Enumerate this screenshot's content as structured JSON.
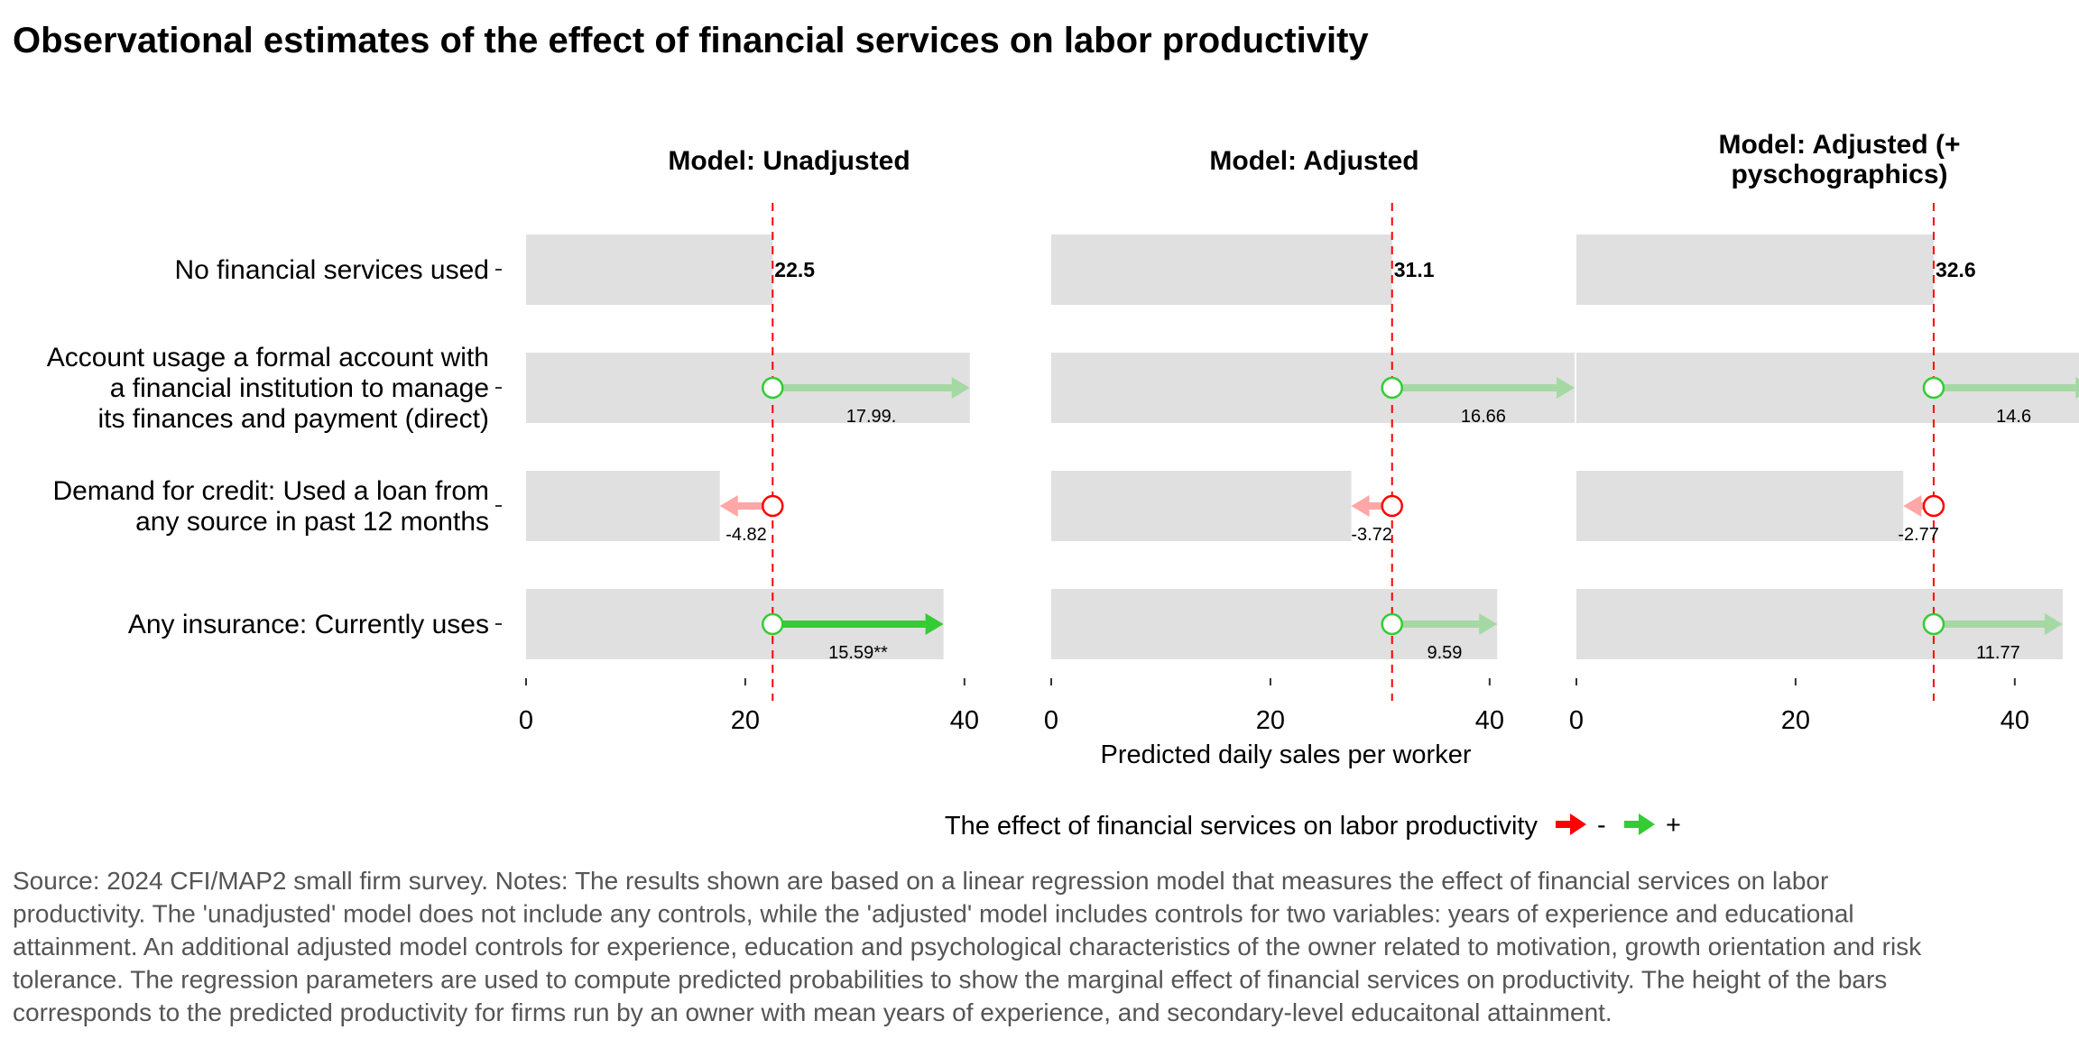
{
  "chart_data": {
    "type": "bar",
    "title": "Observational estimates of the effect of financial services on labor productivity",
    "xlabel": "Predicted daily sales per worker",
    "xlim": [
      0,
      48
    ],
    "xticks": [
      0,
      20,
      40
    ],
    "categories": [
      {
        "lines": [
          "No financial services used"
        ]
      },
      {
        "lines": [
          "Account usage a formal account with",
          "a financial institution to manage",
          "its finances and payment (direct)"
        ]
      },
      {
        "lines": [
          "Demand for credit: Used a loan from",
          "any source in past 12 months"
        ]
      },
      {
        "lines": [
          "Any insurance: Currently uses"
        ]
      }
    ],
    "panels": [
      {
        "title_lines": [
          "Model: Unadjusted"
        ],
        "baseline": 22.5,
        "baseline_label": "22.5",
        "effects": [
          {
            "value": 17.99,
            "label": "17.99.",
            "significant": false
          },
          {
            "value": -4.82,
            "label": "-4.82",
            "significant": false
          },
          {
            "value": 15.59,
            "label": "15.59**",
            "significant": true
          }
        ]
      },
      {
        "title_lines": [
          "Model: Adjusted"
        ],
        "baseline": 31.1,
        "baseline_label": "31.1",
        "effects": [
          {
            "value": 16.66,
            "label": "16.66",
            "significant": false
          },
          {
            "value": -3.72,
            "label": "-3.72",
            "significant": false
          },
          {
            "value": 9.59,
            "label": "9.59",
            "significant": false
          }
        ]
      },
      {
        "title_lines": [
          "Model: Adjusted (+",
          "pyschographics)"
        ],
        "baseline": 32.6,
        "baseline_label": "32.6",
        "effects": [
          {
            "value": 14.6,
            "label": "14.6",
            "significant": false
          },
          {
            "value": -2.77,
            "label": "-2.77",
            "significant": false
          },
          {
            "value": 11.77,
            "label": "11.77",
            "significant": false
          }
        ]
      }
    ],
    "legend": {
      "title": "The effect of financial services on labor productivity",
      "items": [
        {
          "label": "-",
          "color": "#ff0000"
        },
        {
          "label": "+",
          "color": "#33cc33"
        }
      ]
    },
    "colors": {
      "bar": "#e0e0e0",
      "positive": "#33cc33",
      "negative": "#ff0000",
      "refline": "#ff0000"
    },
    "caption_lines": [
      "Source: 2024 CFI/MAP2 small firm survey. Notes: The results shown are based on a linear regression model that measures the effect of financial services on labor",
      "productivity. The 'unadjusted' model does not include any controls, while the 'adjusted' model includes controls for two variables: years of experience and educational",
      "attainment. An additional adjusted model controls for experience, education and psychological characteristics of the owner related to motivation, growth orientation and risk",
      "tolerance. The regression parameters are used to compute predicted probabilities to show the marginal effect of financial services on productivity. The height of the bars",
      "corresponds to the predicted productivity for firms run by an owner with mean years of experience, and secondary-level educaitonal attainment."
    ]
  }
}
